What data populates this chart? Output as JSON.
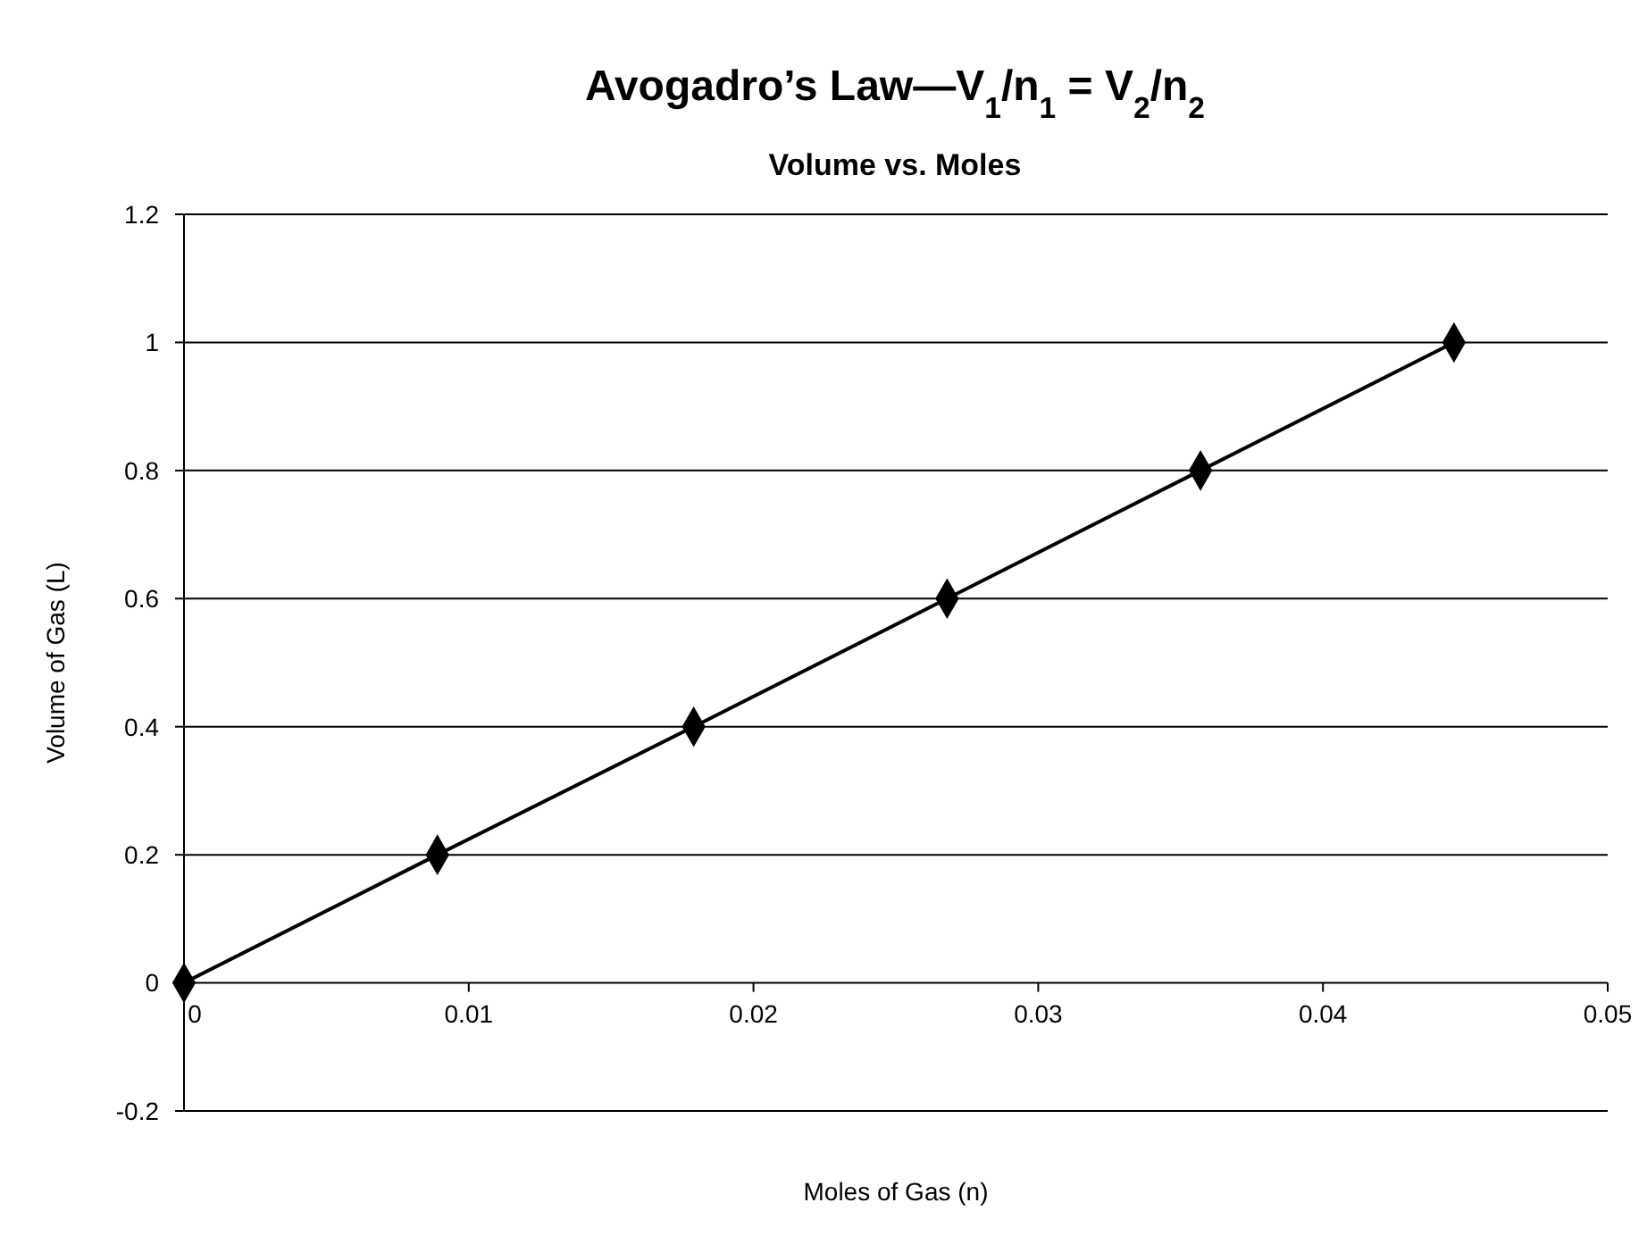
{
  "chart_data": {
    "type": "line",
    "title": "Avogadro’s Law—V$_{1}$/n$_{1}$ = V$_{2}$/n$_{2}$",
    "subtitle": "Volume vs. Moles",
    "xlabel": "Moles of Gas (n)",
    "ylabel": "Volume of Gas (L)",
    "x": [
      0,
      0.0089,
      0.0179,
      0.0268,
      0.0357,
      0.0446
    ],
    "series": [
      {
        "color": "#000000",
        "values": [
          0,
          0.2,
          0.4,
          0.6,
          0.8,
          1
        ]
      }
    ],
    "xlim": [
      0,
      0.05
    ],
    "xticks": [
      0,
      0.01,
      0.02,
      0.03,
      0.04,
      0.05
    ],
    "ylim": [
      -0.2,
      1.2
    ],
    "yticks": [
      -0.2,
      0,
      0.2,
      0.4,
      0.6,
      0.8,
      1,
      1.2
    ],
    "grid": "y",
    "marker": "diamond",
    "line_style": "solid"
  }
}
